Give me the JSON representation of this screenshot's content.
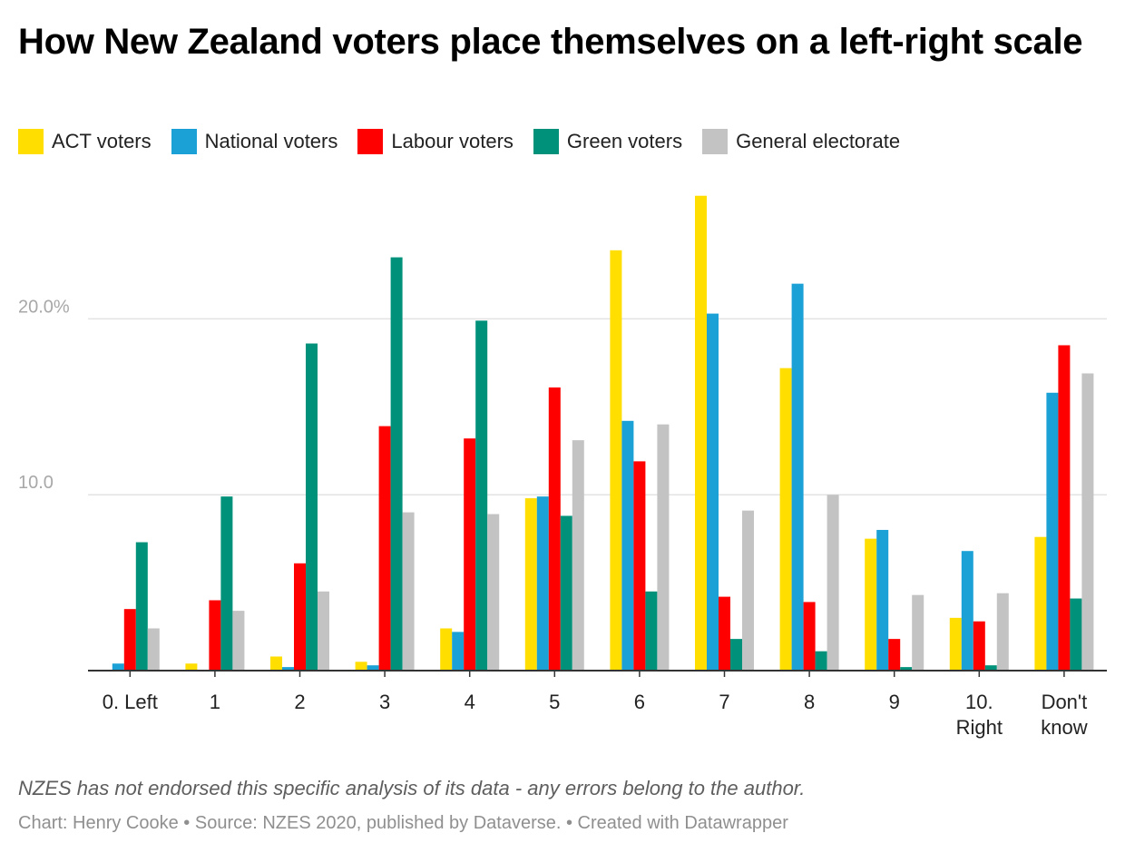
{
  "chart_data": {
    "type": "bar",
    "title": "How New Zealand voters place themselves on a left-right scale",
    "categories": [
      [
        "0. Left"
      ],
      [
        "1"
      ],
      [
        "2"
      ],
      [
        "3"
      ],
      [
        "4"
      ],
      [
        "5"
      ],
      [
        "6"
      ],
      [
        "7"
      ],
      [
        "8"
      ],
      [
        "9"
      ],
      [
        "10.",
        "Right"
      ],
      [
        "Don't",
        "know"
      ]
    ],
    "series": [
      {
        "name": "ACT voters",
        "color": "#ffde00",
        "values": [
          0,
          0.4,
          0.8,
          0.5,
          2.4,
          9.8,
          23.9,
          27.0,
          17.2,
          7.5,
          3.0,
          7.6
        ]
      },
      {
        "name": "National voters",
        "color": "#1ba1d5",
        "values": [
          0.4,
          0,
          0.2,
          0.3,
          2.2,
          9.9,
          14.2,
          20.3,
          22.0,
          8.0,
          6.8,
          15.8
        ]
      },
      {
        "name": "Labour voters",
        "color": "#ff0000",
        "values": [
          3.5,
          4.0,
          6.1,
          13.9,
          13.2,
          16.1,
          11.9,
          4.2,
          3.9,
          1.8,
          2.8,
          18.5
        ]
      },
      {
        "name": "Green voters",
        "color": "#00917a",
        "values": [
          7.3,
          9.9,
          18.6,
          23.5,
          19.9,
          8.8,
          4.5,
          1.8,
          1.1,
          0.2,
          0.3,
          4.1
        ]
      },
      {
        "name": "General electorate",
        "color": "#c3c3c3",
        "values": [
          2.4,
          3.4,
          4.5,
          9.0,
          8.9,
          13.1,
          14.0,
          9.1,
          10.0,
          4.3,
          4.4,
          16.9
        ]
      }
    ],
    "y_ticks": [
      {
        "value": 10,
        "label": "10.0"
      },
      {
        "value": 20,
        "label": "20.0%"
      }
    ],
    "ylim": [
      0,
      28
    ],
    "grid": true,
    "legend_position": "top-left"
  },
  "note": "NZES has not endorsed this specific analysis of its data - any errors belong to the author.",
  "footer": "Chart: Henry Cooke • Source: NZES 2020, published by Dataverse. • Created with Datawrapper"
}
